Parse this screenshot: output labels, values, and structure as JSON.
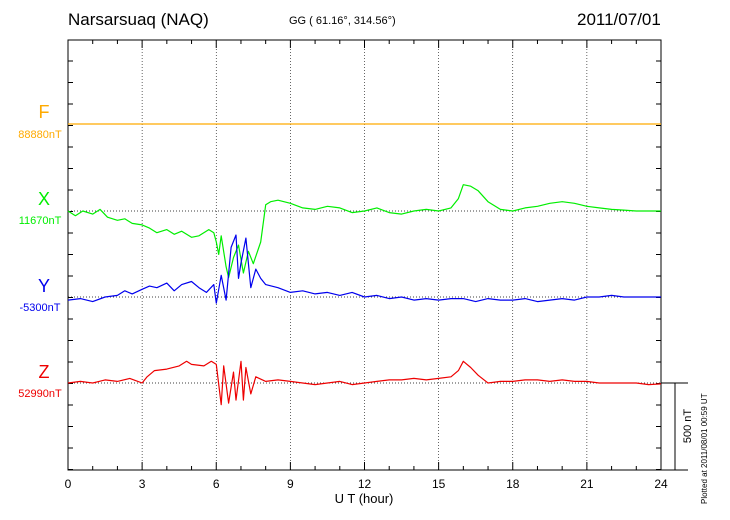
{
  "header": {
    "station": "Narsarsuaq (NAQ)",
    "coords": "GG ( 61.16°, 314.56°)",
    "date": "2011/07/01"
  },
  "footer": {
    "plotted": "Plotted at 2011/08/01 00:59 UT"
  },
  "colors": {
    "F": "#ffaa00",
    "X": "#00ee00",
    "Y": "#0000ee",
    "Z": "#ee0000",
    "grid": "#000000"
  },
  "chart_data": {
    "type": "line",
    "title": "Narsarsuaq (NAQ)",
    "xlabel": "U T (hour)",
    "ylabel": "",
    "xlim": [
      0,
      24
    ],
    "xticks": [
      0,
      3,
      6,
      9,
      12,
      15,
      18,
      21,
      24
    ],
    "scale_bar": {
      "label": "500 nT",
      "value_nT": 500
    },
    "components": [
      {
        "key": "F",
        "letter": "F",
        "baseline_label": "88880nT",
        "baseline_nT": 88880,
        "points": [
          [
            0,
            0
          ],
          [
            24,
            0
          ]
        ]
      },
      {
        "key": "X",
        "letter": "X",
        "baseline_label": "11670nT",
        "baseline_nT": 11670,
        "points": [
          [
            0,
            0
          ],
          [
            0.3,
            -15
          ],
          [
            0.6,
            0
          ],
          [
            1,
            -10
          ],
          [
            1.3,
            5
          ],
          [
            1.6,
            -20
          ],
          [
            2,
            -30
          ],
          [
            2.3,
            -25
          ],
          [
            2.6,
            -40
          ],
          [
            3,
            -45
          ],
          [
            3.3,
            -55
          ],
          [
            3.6,
            -70
          ],
          [
            4,
            -60
          ],
          [
            4.3,
            -75
          ],
          [
            4.6,
            -65
          ],
          [
            5,
            -85
          ],
          [
            5.3,
            -80
          ],
          [
            5.7,
            -60
          ],
          [
            5.9,
            -70
          ],
          [
            6.0,
            -100
          ],
          [
            6.1,
            -140
          ],
          [
            6.2,
            -80
          ],
          [
            6.4,
            -180
          ],
          [
            6.5,
            -215
          ],
          [
            6.7,
            -150
          ],
          [
            6.9,
            -110
          ],
          [
            7.1,
            -200
          ],
          [
            7.3,
            -130
          ],
          [
            7.5,
            -170
          ],
          [
            7.8,
            -100
          ],
          [
            8.0,
            20
          ],
          [
            8.2,
            30
          ],
          [
            8.5,
            35
          ],
          [
            9,
            25
          ],
          [
            9.5,
            10
          ],
          [
            10,
            5
          ],
          [
            10.5,
            15
          ],
          [
            11,
            10
          ],
          [
            11.5,
            -5
          ],
          [
            12,
            0
          ],
          [
            12.5,
            10
          ],
          [
            13,
            -5
          ],
          [
            13.5,
            -10
          ],
          [
            14,
            0
          ],
          [
            14.5,
            5
          ],
          [
            15,
            0
          ],
          [
            15.5,
            10
          ],
          [
            15.8,
            40
          ],
          [
            16.0,
            85
          ],
          [
            16.3,
            80
          ],
          [
            16.6,
            65
          ],
          [
            17,
            30
          ],
          [
            17.5,
            5
          ],
          [
            18,
            0
          ],
          [
            18.5,
            10
          ],
          [
            19,
            15
          ],
          [
            19.5,
            25
          ],
          [
            20,
            30
          ],
          [
            20.5,
            25
          ],
          [
            21,
            15
          ],
          [
            21.5,
            10
          ],
          [
            22,
            5
          ],
          [
            22.5,
            3
          ],
          [
            23,
            0
          ],
          [
            23.5,
            0
          ],
          [
            24,
            0
          ]
        ]
      },
      {
        "key": "Y",
        "letter": "Y",
        "baseline_label": "-5300nT",
        "baseline_nT": -5300,
        "points": [
          [
            0,
            -10
          ],
          [
            0.5,
            -5
          ],
          [
            1,
            -15
          ],
          [
            1.5,
            0
          ],
          [
            2,
            5
          ],
          [
            2.3,
            20
          ],
          [
            2.6,
            10
          ],
          [
            3,
            25
          ],
          [
            3.3,
            35
          ],
          [
            3.6,
            30
          ],
          [
            4,
            45
          ],
          [
            4.3,
            20
          ],
          [
            4.6,
            40
          ],
          [
            5,
            50
          ],
          [
            5.3,
            30
          ],
          [
            5.6,
            15
          ],
          [
            5.9,
            40
          ],
          [
            6.0,
            -20
          ],
          [
            6.2,
            70
          ],
          [
            6.4,
            -10
          ],
          [
            6.6,
            160
          ],
          [
            6.8,
            200
          ],
          [
            6.9,
            60
          ],
          [
            7.0,
            110
          ],
          [
            7.2,
            190
          ],
          [
            7.4,
            30
          ],
          [
            7.6,
            90
          ],
          [
            7.8,
            60
          ],
          [
            8.0,
            40
          ],
          [
            8.5,
            30
          ],
          [
            9,
            15
          ],
          [
            9.5,
            20
          ],
          [
            10,
            10
          ],
          [
            10.5,
            15
          ],
          [
            11,
            5
          ],
          [
            11.5,
            15
          ],
          [
            12,
            0
          ],
          [
            12.5,
            5
          ],
          [
            13,
            -5
          ],
          [
            13.5,
            0
          ],
          [
            14,
            -10
          ],
          [
            14.5,
            -5
          ],
          [
            15,
            -10
          ],
          [
            15.5,
            -5
          ],
          [
            16,
            -5
          ],
          [
            16.5,
            -15
          ],
          [
            17,
            -5
          ],
          [
            17.5,
            -10
          ],
          [
            18,
            -10
          ],
          [
            18.5,
            -5
          ],
          [
            19,
            -15
          ],
          [
            19.5,
            -10
          ],
          [
            20,
            -5
          ],
          [
            20.5,
            -10
          ],
          [
            21,
            0
          ],
          [
            21.5,
            0
          ],
          [
            22,
            5
          ],
          [
            22.5,
            0
          ],
          [
            23,
            0
          ],
          [
            24,
            0
          ]
        ]
      },
      {
        "key": "Z",
        "letter": "Z",
        "baseline_label": "52990nT",
        "baseline_nT": 52990,
        "points": [
          [
            0,
            0
          ],
          [
            0.5,
            5
          ],
          [
            1,
            0
          ],
          [
            1.5,
            10
          ],
          [
            2,
            5
          ],
          [
            2.5,
            15
          ],
          [
            3,
            0
          ],
          [
            3.2,
            20
          ],
          [
            3.5,
            40
          ],
          [
            4,
            45
          ],
          [
            4.5,
            55
          ],
          [
            4.8,
            70
          ],
          [
            5,
            60
          ],
          [
            5.5,
            55
          ],
          [
            5.8,
            70
          ],
          [
            6.0,
            60
          ],
          [
            6.2,
            -70
          ],
          [
            6.3,
            55
          ],
          [
            6.5,
            -65
          ],
          [
            6.7,
            35
          ],
          [
            6.8,
            -55
          ],
          [
            7.0,
            70
          ],
          [
            7.1,
            -55
          ],
          [
            7.2,
            50
          ],
          [
            7.4,
            -35
          ],
          [
            7.6,
            20
          ],
          [
            8,
            5
          ],
          [
            8.5,
            10
          ],
          [
            9,
            5
          ],
          [
            9.5,
            0
          ],
          [
            10,
            -5
          ],
          [
            10.5,
            0
          ],
          [
            11,
            5
          ],
          [
            11.5,
            -5
          ],
          [
            12,
            0
          ],
          [
            12.5,
            5
          ],
          [
            13,
            10
          ],
          [
            13.5,
            10
          ],
          [
            14,
            15
          ],
          [
            14.5,
            10
          ],
          [
            15,
            15
          ],
          [
            15.5,
            20
          ],
          [
            15.8,
            40
          ],
          [
            16.0,
            70
          ],
          [
            16.3,
            50
          ],
          [
            16.6,
            25
          ],
          [
            17,
            0
          ],
          [
            17.5,
            5
          ],
          [
            18,
            5
          ],
          [
            18.5,
            10
          ],
          [
            19,
            10
          ],
          [
            19.5,
            5
          ],
          [
            20,
            10
          ],
          [
            20.5,
            5
          ],
          [
            21,
            5
          ],
          [
            21.5,
            0
          ],
          [
            22,
            0
          ],
          [
            22.5,
            0
          ],
          [
            23,
            0
          ],
          [
            23.5,
            -5
          ],
          [
            24,
            -3
          ]
        ]
      }
    ]
  }
}
